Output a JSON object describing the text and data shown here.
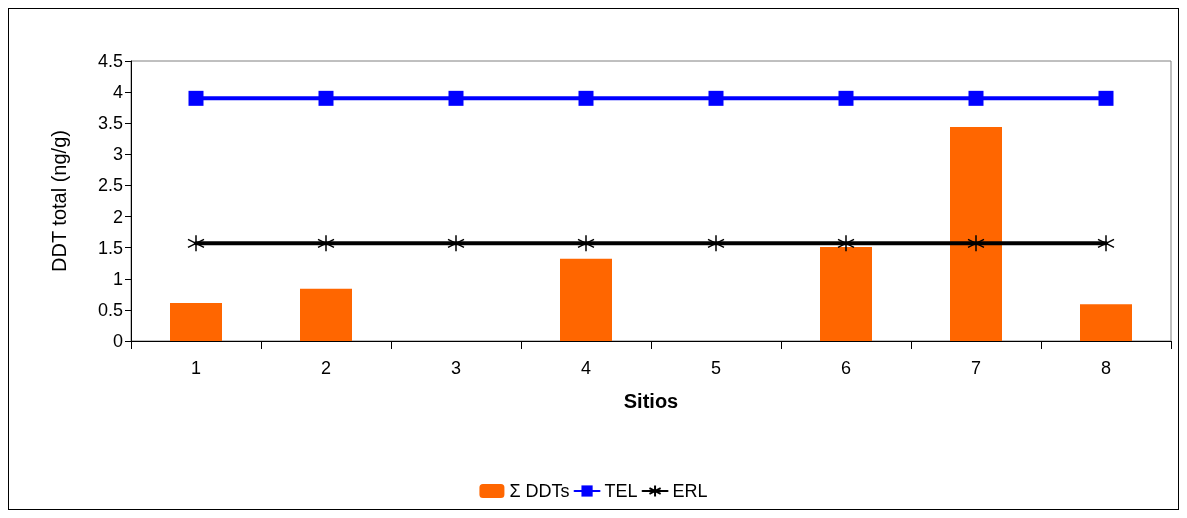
{
  "chart_data": {
    "type": "bar",
    "xlabel": "Sitios",
    "ylabel": "DDT total (ng/g)",
    "categories": [
      "1",
      "2",
      "3",
      "4",
      "5",
      "6",
      "7",
      "8"
    ],
    "series": [
      {
        "name": "Σ DDTs",
        "color": "#ff6600",
        "values": [
          0.61,
          0.84,
          0,
          1.32,
          0,
          1.51,
          3.44,
          0.59
        ]
      },
      {
        "name": "TEL",
        "type": "line",
        "color": "#0000ff",
        "marker": "square",
        "values": [
          3.9,
          3.9,
          3.9,
          3.9,
          3.9,
          3.9,
          3.9,
          3.9
        ]
      },
      {
        "name": "ERL",
        "type": "line",
        "color": "#000000",
        "marker": "cross",
        "values": [
          1.57,
          1.57,
          1.57,
          1.57,
          1.57,
          1.57,
          1.57,
          1.57
        ]
      }
    ],
    "ylim": [
      0,
      4.5
    ],
    "yticks": [
      0,
      0.5,
      1,
      1.5,
      2,
      2.5,
      3,
      3.5,
      4,
      4.5
    ],
    "grid": false,
    "legend": "bottom",
    "line_style": "solid"
  }
}
